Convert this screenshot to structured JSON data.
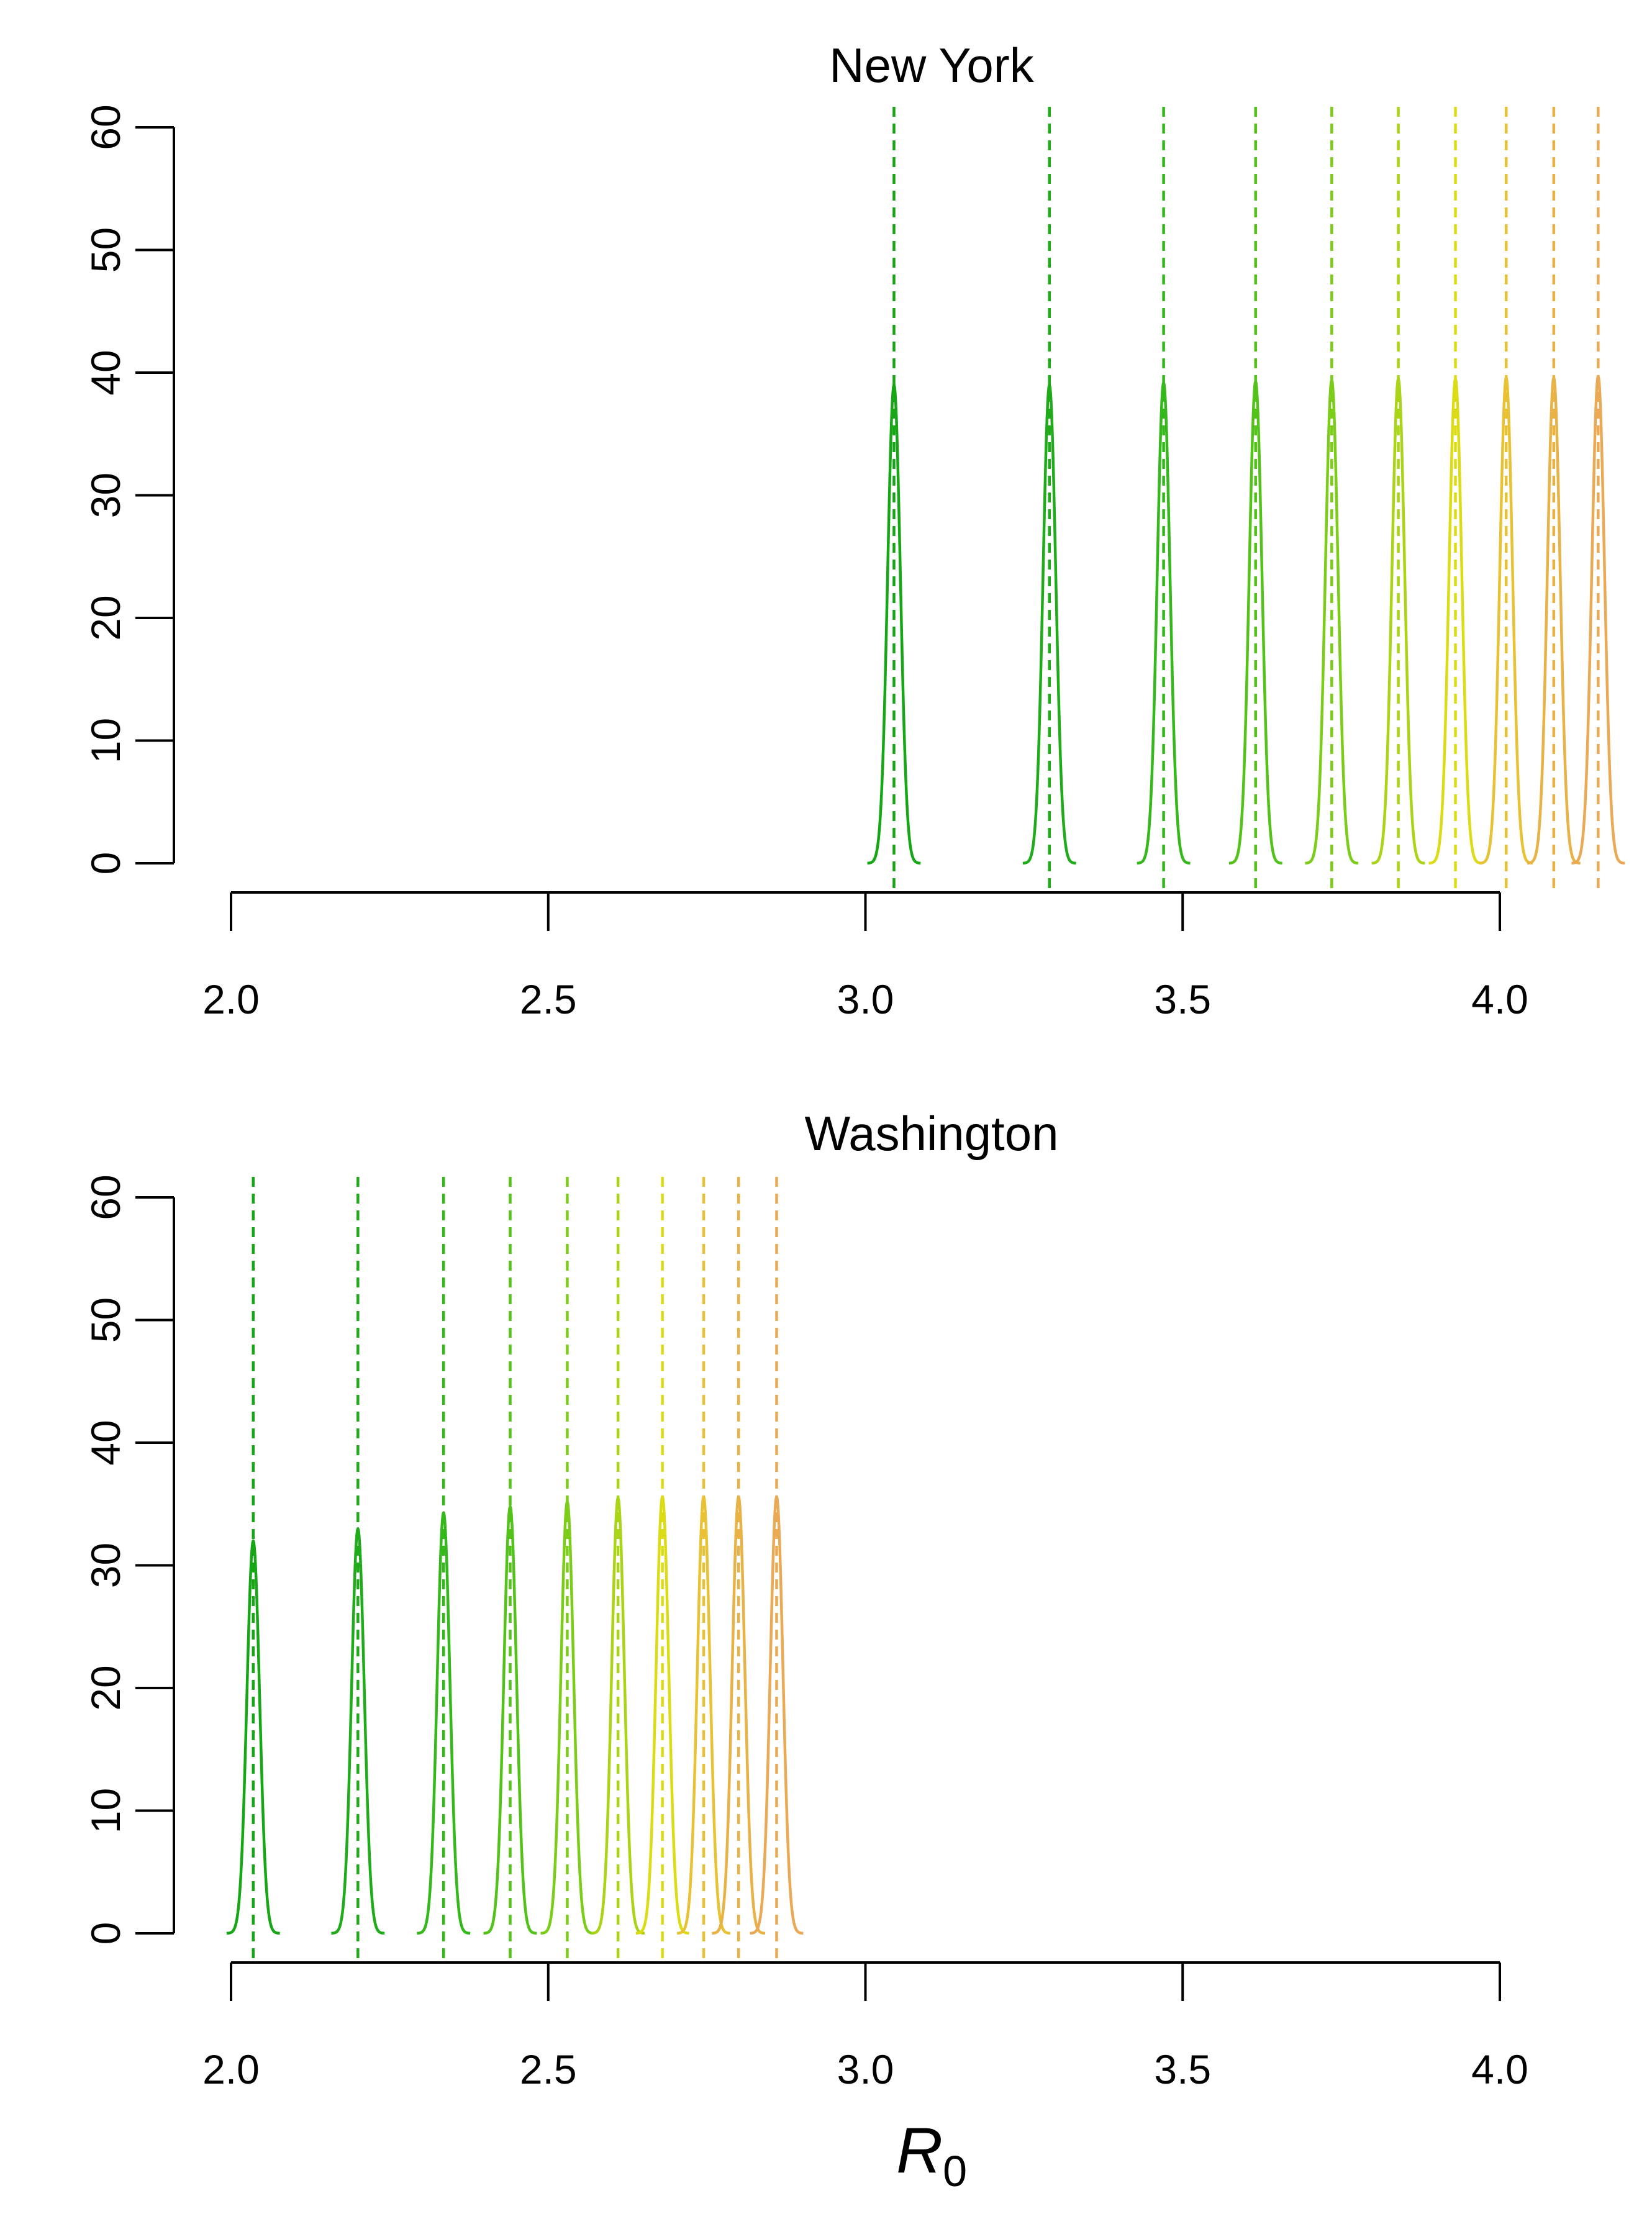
{
  "chart_data": [
    {
      "type": "line",
      "title": "New York",
      "xlabel": "",
      "ylabel": "",
      "xlim": [
        1.95,
        4.2
      ],
      "ylim": [
        0,
        60
      ],
      "x_ticks": [
        "2.0",
        "2.5",
        "3.0",
        "3.5",
        "4.0"
      ],
      "y_ticks": [
        "0",
        "10",
        "20",
        "30",
        "40",
        "50",
        "60"
      ],
      "grid": false,
      "series": [
        {
          "center": 3.045,
          "peak": 39.0,
          "sd": 0.01,
          "color": "#16a616"
        },
        {
          "center": 3.29,
          "peak": 39.0,
          "sd": 0.01,
          "color": "#1fab1a"
        },
        {
          "center": 3.47,
          "peak": 39.2,
          "sd": 0.01,
          "color": "#35b81c"
        },
        {
          "center": 3.615,
          "peak": 39.3,
          "sd": 0.01,
          "color": "#53c21b"
        },
        {
          "center": 3.735,
          "peak": 39.4,
          "sd": 0.01,
          "color": "#7ccc1a"
        },
        {
          "center": 3.84,
          "peak": 39.5,
          "sd": 0.01,
          "color": "#aad418"
        },
        {
          "center": 3.93,
          "peak": 39.5,
          "sd": 0.01,
          "color": "#dcdc16"
        },
        {
          "center": 4.01,
          "peak": 39.6,
          "sd": 0.01,
          "color": "#e8c234"
        },
        {
          "center": 4.085,
          "peak": 39.6,
          "sd": 0.01,
          "color": "#e9b246"
        },
        {
          "center": 4.155,
          "peak": 39.7,
          "sd": 0.01,
          "color": "#eaaa55"
        }
      ]
    },
    {
      "type": "line",
      "title": "Washington",
      "xlabel": "R0",
      "ylabel": "",
      "xlim": [
        1.95,
        4.2
      ],
      "ylim": [
        0,
        60
      ],
      "x_ticks": [
        "2.0",
        "2.5",
        "3.0",
        "3.5",
        "4.0"
      ],
      "y_ticks": [
        "0",
        "10",
        "20",
        "30",
        "40",
        "50",
        "60"
      ],
      "grid": false,
      "series": [
        {
          "center": 2.035,
          "peak": 32.0,
          "sd": 0.01,
          "color": "#16a616"
        },
        {
          "center": 2.2,
          "peak": 33.0,
          "sd": 0.01,
          "color": "#1fab1a"
        },
        {
          "center": 2.335,
          "peak": 34.3,
          "sd": 0.01,
          "color": "#35b81c"
        },
        {
          "center": 2.44,
          "peak": 34.8,
          "sd": 0.01,
          "color": "#53c21b"
        },
        {
          "center": 2.53,
          "peak": 35.2,
          "sd": 0.01,
          "color": "#7ccc1a"
        },
        {
          "center": 2.61,
          "peak": 35.5,
          "sd": 0.01,
          "color": "#aad418"
        },
        {
          "center": 2.68,
          "peak": 35.6,
          "sd": 0.01,
          "color": "#dcdc16"
        },
        {
          "center": 2.745,
          "peak": 35.6,
          "sd": 0.01,
          "color": "#e8c234"
        },
        {
          "center": 2.8,
          "peak": 35.6,
          "sd": 0.01,
          "color": "#e9b246"
        },
        {
          "center": 2.86,
          "peak": 35.6,
          "sd": 0.01,
          "color": "#eaaa55"
        }
      ]
    }
  ],
  "colors": {
    "axis": "#000000",
    "dashed_line": "#1aa61a"
  }
}
